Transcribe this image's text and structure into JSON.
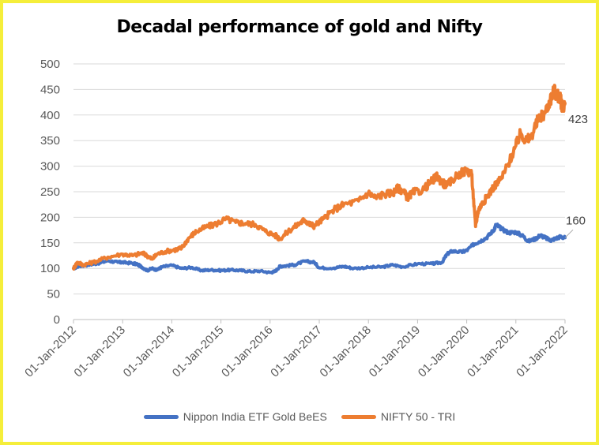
{
  "chart_data": {
    "type": "line",
    "title": "Decadal performance of gold and Nifty",
    "xlabel": "",
    "ylabel": "",
    "ylim": [
      0,
      500
    ],
    "yticks": [
      0,
      50,
      100,
      150,
      200,
      250,
      300,
      350,
      400,
      450,
      500
    ],
    "xlim": [
      2012,
      2022
    ],
    "xtick_labels": [
      "01-Jan-2012",
      "01-Jan-2013",
      "01-Jan-2014",
      "01-Jan-2015",
      "01-Jan-2016",
      "01-Jan-2017",
      "01-Jan-2018",
      "01-Jan-2019",
      "01-Jan-2020",
      "01-Jan-2021",
      "01-Jan-2022"
    ],
    "grid": true,
    "legend_position": "bottom",
    "series": [
      {
        "name": "Nippon India ETF Gold BeES",
        "color": "#4472c4",
        "end_label": "160",
        "x": [
          2012.0,
          2012.1,
          2012.3,
          2012.5,
          2012.7,
          2012.9,
          2013.0,
          2013.2,
          2013.3,
          2013.4,
          2013.5,
          2013.6,
          2013.7,
          2013.8,
          2014.0,
          2014.2,
          2014.4,
          2014.6,
          2014.8,
          2015.0,
          2015.2,
          2015.4,
          2015.6,
          2015.8,
          2016.0,
          2016.1,
          2016.2,
          2016.3,
          2016.5,
          2016.7,
          2016.9,
          2017.0,
          2017.3,
          2017.5,
          2017.7,
          2018.0,
          2018.3,
          2018.5,
          2018.7,
          2019.0,
          2019.3,
          2019.5,
          2019.6,
          2019.7,
          2019.9,
          2020.0,
          2020.15,
          2020.25,
          2020.4,
          2020.55,
          2020.6,
          2020.7,
          2020.85,
          2021.0,
          2021.15,
          2021.25,
          2021.4,
          2021.5,
          2021.6,
          2021.7,
          2021.8,
          2021.9,
          2022.0
        ],
        "values": [
          100,
          104,
          107,
          110,
          115,
          112,
          112,
          110,
          108,
          102,
          96,
          100,
          97,
          103,
          106,
          100,
          102,
          96,
          97,
          96,
          97,
          96,
          94,
          95,
          92,
          94,
          104,
          105,
          107,
          114,
          112,
          101,
          101,
          104,
          100,
          102,
          103,
          107,
          103,
          109,
          109,
          112,
          128,
          134,
          132,
          135,
          148,
          152,
          160,
          175,
          186,
          178,
          170,
          171,
          163,
          153,
          158,
          165,
          160,
          155,
          158,
          162,
          160
        ]
      },
      {
        "name": "NIFTY 50 - TRI",
        "color": "#ed7d31",
        "end_label": "423",
        "x": [
          2012.0,
          2012.08,
          2012.2,
          2012.4,
          2012.7,
          2013.0,
          2013.2,
          2013.4,
          2013.5,
          2013.6,
          2013.7,
          2013.9,
          2014.1,
          2014.2,
          2014.35,
          2014.5,
          2014.7,
          2014.9,
          2015.1,
          2015.3,
          2015.5,
          2015.7,
          2015.9,
          2016.1,
          2016.2,
          2016.4,
          2016.6,
          2016.7,
          2016.8,
          2016.9,
          2017.1,
          2017.3,
          2017.5,
          2017.8,
          2018.0,
          2018.15,
          2018.3,
          2018.5,
          2018.6,
          2018.7,
          2018.8,
          2018.9,
          2019.1,
          2019.3,
          2019.4,
          2019.5,
          2019.6,
          2019.8,
          2020.0,
          2020.1,
          2020.18,
          2020.23,
          2020.3,
          2020.4,
          2020.55,
          2020.7,
          2020.85,
          2021.0,
          2021.1,
          2021.2,
          2021.3,
          2021.45,
          2021.6,
          2021.7,
          2021.78,
          2021.82,
          2021.9,
          2021.95,
          2022.0
        ],
        "values": [
          100,
          112,
          107,
          112,
          122,
          128,
          125,
          130,
          125,
          118,
          128,
          134,
          137,
          140,
          160,
          172,
          181,
          187,
          197,
          190,
          188,
          186,
          173,
          165,
          158,
          175,
          188,
          195,
          187,
          183,
          198,
          215,
          225,
          232,
          248,
          238,
          245,
          248,
          257,
          252,
          238,
          248,
          253,
          272,
          280,
          268,
          262,
          282,
          292,
          285,
          182,
          212,
          225,
          238,
          260,
          275,
          305,
          340,
          365,
          350,
          355,
          390,
          405,
          430,
          448,
          440,
          432,
          415,
          423
        ]
      }
    ]
  }
}
